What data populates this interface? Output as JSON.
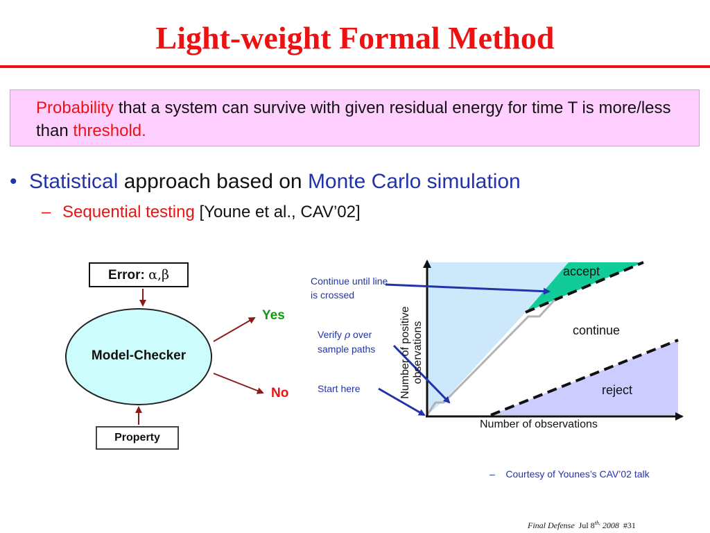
{
  "slide": {
    "title": "Light-weight Formal Method"
  },
  "callout": {
    "highlight1": "Probability",
    "text1": " that a system can survive with given residual energy for time T is more/less than ",
    "highlight2": "threshold."
  },
  "bullet": {
    "highlight1": "Statistical",
    "text1": " approach based on ",
    "highlight2": "Monte Carlo simulation"
  },
  "sub_bullet": {
    "dash": "–",
    "highlight": "Sequential testing",
    "text": " [Youne et al., CAV’02]"
  },
  "flow": {
    "error_label": "Error:",
    "error_symbols": "α,β",
    "checker_label": "Model-Checker",
    "property_label": "Property",
    "yes_label": "Yes",
    "no_label": "No"
  },
  "notes": {
    "continue_note": "Continue until line is crossed",
    "verify_prefix": "Verify ",
    "verify_symbol": "ρ",
    "verify_suffix": " over sample paths",
    "start_note": "Start here"
  },
  "chart": {
    "accept_label": "accept",
    "continue_label": "continue",
    "reject_label": "reject",
    "y_axis_label": "Number of positive observations",
    "x_axis_label": "Number of observations"
  },
  "courtesy": {
    "dash": "–",
    "text": "Courtesy of Younes’s CAV’02 talk"
  },
  "footer": {
    "event": "Final Defense",
    "date_prefix": "Jul 8",
    "date_sup": "th,",
    "year": "2008",
    "slide_number": "#31"
  },
  "colors": {
    "title_red": "#ee1111",
    "callout_bg": "#ffd0ff",
    "accent_blue": "#2233aa",
    "accept_region": "#11cc99",
    "upper_region": "#cce8fa",
    "reject_region": "#ccccff",
    "checker_fill": "#ccfcfc",
    "yes_green": "#119911",
    "arrow_maroon": "#8b1a1a",
    "path_gray": "#b3b3b3"
  }
}
